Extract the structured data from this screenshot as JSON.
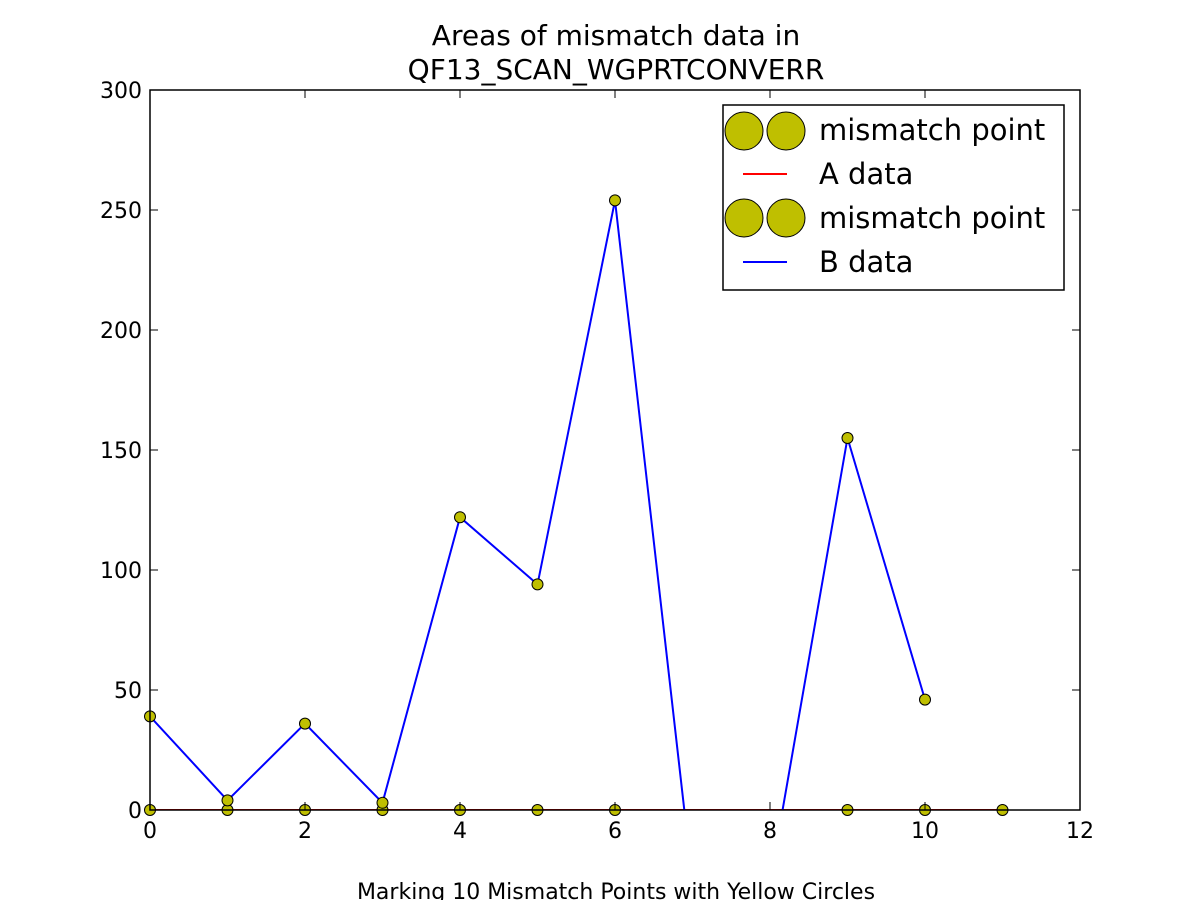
{
  "chart_data": {
    "type": "line",
    "title_lines": [
      "Areas of mismatch data in",
      "QF13_SCAN_WGPRTCONVERR"
    ],
    "xlabel": "Marking 10 Mismatch Points with Yellow Circles",
    "ylabel": "",
    "xlim": [
      0,
      12
    ],
    "ylim": [
      0,
      300
    ],
    "x_ticks": [
      0,
      2,
      4,
      6,
      8,
      10,
      12
    ],
    "y_ticks": [
      0,
      50,
      100,
      150,
      200,
      250,
      300
    ],
    "grid": false,
    "legend_position": "top-right",
    "series": [
      {
        "name": "A data",
        "color": "#ff0000",
        "x": [
          0,
          1,
          2,
          3,
          4,
          5,
          6,
          7,
          8,
          9,
          10,
          11
        ],
        "values": [
          0,
          0,
          0,
          0,
          0,
          0,
          0,
          0,
          0,
          0,
          0,
          0
        ],
        "mismatch_points": {
          "name": "mismatch point",
          "color": "#bfbf00",
          "x": [
            0,
            1,
            2,
            3,
            4,
            5,
            6,
            9,
            10,
            11
          ],
          "values": [
            0,
            0,
            0,
            0,
            0,
            0,
            0,
            0,
            0,
            0
          ]
        }
      },
      {
        "name": "B data",
        "color": "#0000ff",
        "x": [
          0,
          1,
          2,
          3,
          4,
          5,
          6,
          7,
          8,
          9,
          10
        ],
        "values": [
          39,
          4,
          36,
          3,
          122,
          94,
          254,
          -30,
          -30,
          155,
          46
        ],
        "mismatch_points": {
          "name": "mismatch point",
          "color": "#bfbf00",
          "x": [
            0,
            1,
            2,
            3,
            4,
            5,
            6,
            9,
            10
          ],
          "values": [
            39,
            4,
            36,
            3,
            122,
            94,
            254,
            155,
            46
          ]
        }
      }
    ],
    "legend_entries": [
      "mismatch point",
      "A data",
      "mismatch point",
      "B data"
    ]
  }
}
